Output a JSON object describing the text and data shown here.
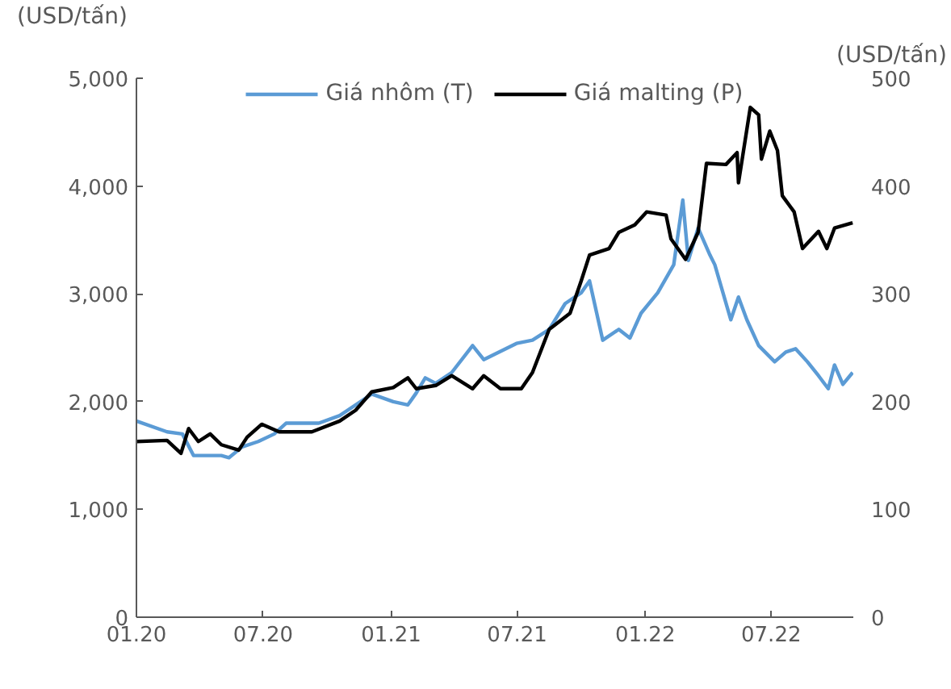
{
  "chart_data": {
    "type": "line",
    "ylabel": "(USD/tấn)",
    "y2label": "(USD/tấn)",
    "legend": "top",
    "grid": false,
    "marker": "none",
    "line_style": "solid",
    "xlim": [
      "2020-01-01",
      "2022-10-27"
    ],
    "xticks": [
      {
        "value": "2020-01-01",
        "label": "01.20"
      },
      {
        "value": "2020-07-01",
        "label": "07.20"
      },
      {
        "value": "2021-01-01",
        "label": "01.21"
      },
      {
        "value": "2021-07-01",
        "label": "07.21"
      },
      {
        "value": "2022-01-01",
        "label": "01.22"
      },
      {
        "value": "2022-07-01",
        "label": "07.22"
      }
    ],
    "ylim": [
      0,
      5000
    ],
    "yticks": [
      0,
      {
        "value": 1000,
        "label": "1,000"
      },
      {
        "value": 2000,
        "label": "2,000"
      },
      {
        "value": 3000,
        "label": "3,000"
      },
      {
        "value": 4000,
        "label": "4,000"
      },
      {
        "value": 5000,
        "label": "5,000"
      }
    ],
    "y2lim": [
      0,
      500
    ],
    "y2ticks": [
      0,
      100,
      200,
      300,
      400,
      500
    ],
    "series": [
      {
        "name": "Giá nhôm (T)",
        "color": "#5b9bd5",
        "x": [
          "2020-01-01",
          "2020-02-14",
          "2020-03-07",
          "2020-03-23",
          "2020-05-02",
          "2020-05-13",
          "2020-06-01",
          "2020-06-24",
          "2020-07-17",
          "2020-08-03",
          "2020-09-19",
          "2020-10-19",
          "2020-11-18",
          "2020-12-04",
          "2021-01-04",
          "2021-01-25",
          "2021-02-06",
          "2021-02-19",
          "2021-03-06",
          "2021-03-29",
          "2021-04-28",
          "2021-05-14",
          "2021-06-30",
          "2021-07-23",
          "2021-08-16",
          "2021-09-08",
          "2021-10-01",
          "2021-10-13",
          "2021-11-01",
          "2021-11-24",
          "2021-12-10",
          "2021-12-26",
          "2022-01-19",
          "2022-02-11",
          "2022-02-24",
          "2022-03-04",
          "2022-03-18",
          "2022-04-04",
          "2022-04-11",
          "2022-05-04",
          "2022-05-15",
          "2022-05-27",
          "2022-06-13",
          "2022-07-06",
          "2022-07-22",
          "2022-08-05",
          "2022-08-22",
          "2022-09-07",
          "2022-09-21",
          "2022-09-30",
          "2022-10-12",
          "2022-10-26"
        ],
        "values": [
          1820,
          1720,
          1700,
          1500,
          1500,
          1480,
          1580,
          1630,
          1700,
          1800,
          1800,
          1870,
          2000,
          2070,
          2000,
          1970,
          2080,
          2220,
          2170,
          2270,
          2520,
          2390,
          2540,
          2570,
          2670,
          2910,
          3010,
          3120,
          2570,
          2670,
          2590,
          2820,
          3010,
          3270,
          3870,
          3310,
          3610,
          3360,
          3270,
          2760,
          2970,
          2760,
          2520,
          2370,
          2460,
          2490,
          2370,
          2240,
          2120,
          2340,
          2160,
          2270
        ]
      },
      {
        "name": "Giá malting (P)",
        "color": "#000000",
        "axis": "y2",
        "x": [
          "2020-01-01",
          "2020-02-14",
          "2020-03-05",
          "2020-03-16",
          "2020-03-30",
          "2020-04-16",
          "2020-05-02",
          "2020-05-27",
          "2020-06-08",
          "2020-06-29",
          "2020-07-24",
          "2020-09-09",
          "2020-10-19",
          "2020-11-11",
          "2020-12-04",
          "2021-01-04",
          "2021-01-25",
          "2021-02-06",
          "2021-03-06",
          "2021-03-29",
          "2021-04-28",
          "2021-05-14",
          "2021-06-07",
          "2021-07-07",
          "2021-07-23",
          "2021-08-16",
          "2021-09-15",
          "2021-10-01",
          "2021-10-13",
          "2021-11-10",
          "2021-11-24",
          "2021-12-17",
          "2022-01-03",
          "2022-01-31",
          "2022-02-07",
          "2022-02-28",
          "2022-03-18",
          "2022-03-30",
          "2022-04-27",
          "2022-05-13",
          "2022-05-15",
          "2022-06-01",
          "2022-06-13",
          "2022-06-17",
          "2022-06-29",
          "2022-07-10",
          "2022-07-17",
          "2022-08-03",
          "2022-08-15",
          "2022-09-07",
          "2022-09-19",
          "2022-09-30",
          "2022-10-26"
        ],
        "values": [
          163,
          164,
          152,
          175,
          163,
          170,
          160,
          155,
          167,
          179,
          172,
          172,
          182,
          192,
          209,
          213,
          222,
          212,
          215,
          224,
          212,
          224,
          212,
          212,
          227,
          267,
          282,
          312,
          336,
          342,
          357,
          364,
          376,
          373,
          351,
          332,
          357,
          421,
          420,
          431,
          403,
          473,
          466,
          425,
          451,
          433,
          391,
          376,
          342,
          358,
          342,
          361,
          366
        ]
      }
    ]
  }
}
